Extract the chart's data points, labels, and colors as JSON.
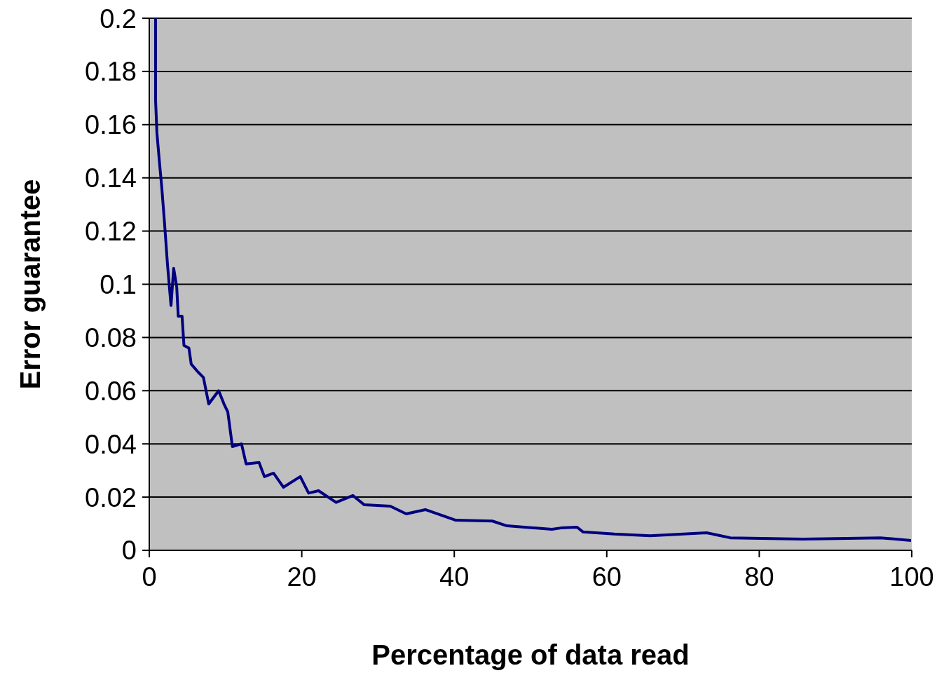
{
  "chart_data": {
    "type": "line",
    "xlabel": "Percentage of data read",
    "ylabel": "Error guarantee",
    "x": [
      0.83,
      0.83,
      1.0,
      1.33,
      1.65,
      2.0,
      2.4,
      2.85,
      3.2,
      3.6,
      3.8,
      4.3,
      4.55,
      5.2,
      5.5,
      6.4,
      7.1,
      7.8,
      9.1,
      9.8,
      10.3,
      10.9,
      12.1,
      12.7,
      14.4,
      15.1,
      16.3,
      17.6,
      19.8,
      20.9,
      22.2,
      24.5,
      26.7,
      28.2,
      31.6,
      33.7,
      36.2,
      40.2,
      45.0,
      46.9,
      52.8,
      54.0,
      56.1,
      56.9,
      61.0,
      65.7,
      73.1,
      76.2,
      85.7,
      95.9,
      99.9
    ],
    "values": [
      0.2,
      0.169,
      0.157,
      0.146,
      0.136,
      0.123,
      0.107,
      0.092,
      0.106,
      0.099,
      0.088,
      0.088,
      0.077,
      0.076,
      0.07,
      0.067,
      0.065,
      0.055,
      0.06,
      0.055,
      0.052,
      0.039,
      0.04,
      0.0325,
      0.033,
      0.0277,
      0.029,
      0.0237,
      0.0277,
      0.0215,
      0.0224,
      0.018,
      0.0206,
      0.0171,
      0.0166,
      0.0137,
      0.0153,
      0.0113,
      0.011,
      0.0092,
      0.0079,
      0.0084,
      0.0087,
      0.0069,
      0.0061,
      0.0055,
      0.0066,
      0.0047,
      0.0042,
      0.0047,
      0.0037
    ],
    "color": "#000080",
    "xlim": [
      0,
      100
    ],
    "xticks": [
      0,
      20,
      40,
      60,
      80,
      100
    ],
    "ylim": [
      0,
      0.2
    ],
    "yticks": [
      0,
      0.02,
      0.04,
      0.06,
      0.08,
      0.1,
      0.12,
      0.14,
      0.16,
      0.18,
      0.2
    ],
    "grid": "y",
    "marker": "none",
    "line_style": "solid",
    "legend": false
  }
}
